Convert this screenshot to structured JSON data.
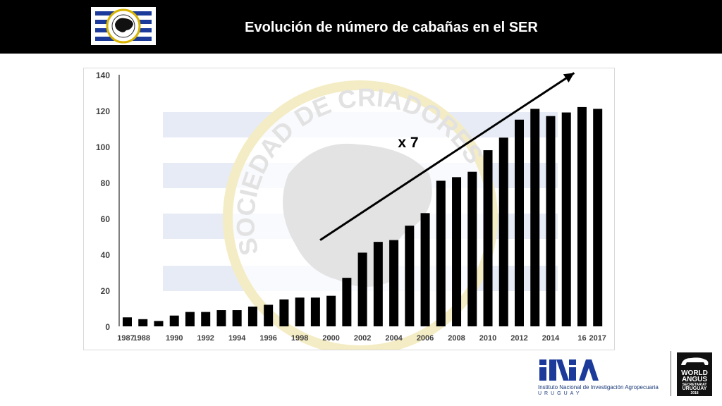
{
  "header": {
    "title": "Evolución de número de cabañas en el SER",
    "logo_text_top": "SOCIEDAD DE CRIADORES",
    "logo_text_bottom": "URUGUAY"
  },
  "chart_data": {
    "type": "bar",
    "title": "",
    "xlabel": "",
    "ylabel": "",
    "ylim": [
      0,
      140
    ],
    "yticks": [
      0,
      20,
      40,
      60,
      80,
      100,
      120,
      140
    ],
    "grid": false,
    "legend": "none",
    "bar_color": "#000000",
    "categories": [
      "1987",
      "1988",
      "1989",
      "1990",
      "1991",
      "1992",
      "1993",
      "1994",
      "1995",
      "1996",
      "1997",
      "1998",
      "1999",
      "2000",
      "2001",
      "2002",
      "2003",
      "2004",
      "2005",
      "2006",
      "2007",
      "2008",
      "2009",
      "2010",
      "2011",
      "2012",
      "2013",
      "2014",
      "2015",
      "2016",
      "2017"
    ],
    "values": [
      5,
      4,
      3,
      6,
      8,
      8,
      9,
      9,
      11,
      12,
      15,
      16,
      16,
      17,
      27,
      41,
      47,
      48,
      56,
      63,
      81,
      83,
      86,
      98,
      105,
      115,
      121,
      117,
      119,
      122,
      121
    ],
    "xtick_labels": [
      {
        "index": 0,
        "label": "1987"
      },
      {
        "index": 1,
        "label": "1988"
      },
      {
        "index": 3,
        "label": "1990"
      },
      {
        "index": 5,
        "label": "1992"
      },
      {
        "index": 7,
        "label": "1994"
      },
      {
        "index": 9,
        "label": "1996"
      },
      {
        "index": 11,
        "label": "1998"
      },
      {
        "index": 13,
        "label": "2000"
      },
      {
        "index": 15,
        "label": "2002"
      },
      {
        "index": 17,
        "label": "2004"
      },
      {
        "index": 19,
        "label": "2006"
      },
      {
        "index": 21,
        "label": "2008"
      },
      {
        "index": 23,
        "label": "2010"
      },
      {
        "index": 25,
        "label": "2012"
      },
      {
        "index": 27,
        "label": "2014"
      },
      {
        "index": 29,
        "label": "16"
      },
      {
        "index": 30,
        "label": "2017"
      }
    ],
    "annotation": {
      "text": "x 7"
    },
    "trend_arrow": {
      "from": [
        12.3,
        48
      ],
      "to": [
        28.5,
        141
      ]
    },
    "watermark_text": "SOCIEDAD DE CRIADORES"
  },
  "footer": {
    "inia_logo": "INIA",
    "inia_name": "Instituto Nacional de Investigación Agropecuaria",
    "inia_country": "URUGUAY",
    "wa_line1": "WORLD",
    "wa_line2": "ANGUS",
    "wa_line3": "SECRETARIAT",
    "wa_line4": "URUGUAY",
    "wa_line5": "2018"
  }
}
